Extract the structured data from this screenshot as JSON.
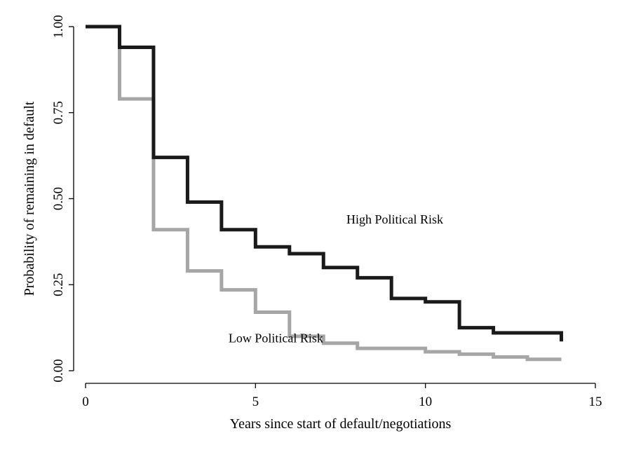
{
  "chart_data": {
    "type": "line",
    "step": true,
    "xlabel": "Years since start of default/negotiations",
    "ylabel": "Probability of remaining in default",
    "xlim": [
      0,
      15
    ],
    "ylim": [
      0,
      1
    ],
    "xticks": [
      "0",
      "5",
      "10",
      "15"
    ],
    "yticks": [
      "0.00",
      "0.25",
      "0.50",
      "0.75",
      "1.00"
    ],
    "grid": false,
    "annotations": [
      {
        "text": "High Political Risk",
        "x": 9.1,
        "y": 0.44
      },
      {
        "text": "Low Political Risk",
        "x": 5.6,
        "y": 0.095
      }
    ],
    "series": [
      {
        "color": "#1a1a1a",
        "x": [
          0,
          1,
          2,
          3,
          4,
          5,
          6,
          7,
          8,
          9,
          10,
          11,
          12,
          14
        ],
        "y": [
          1.0,
          0.94,
          0.62,
          0.49,
          0.41,
          0.36,
          0.34,
          0.3,
          0.27,
          0.21,
          0.2,
          0.125,
          0.11,
          0.085
        ]
      },
      {
        "color": "#a6a6a6",
        "x": [
          0,
          1,
          2,
          3,
          4,
          5,
          6,
          7,
          8,
          10,
          11,
          12,
          13,
          14
        ],
        "y": [
          1.0,
          0.79,
          0.41,
          0.29,
          0.235,
          0.17,
          0.1,
          0.08,
          0.065,
          0.055,
          0.048,
          0.04,
          0.033,
          0.033
        ]
      }
    ]
  }
}
